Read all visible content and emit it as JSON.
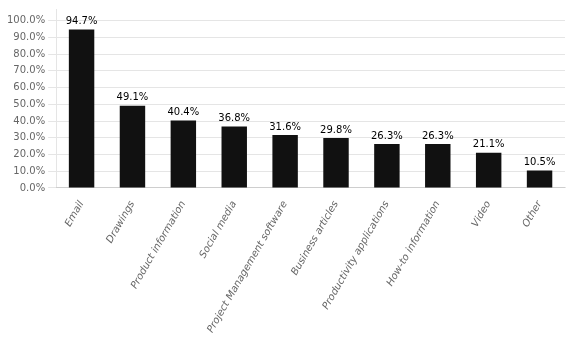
{
  "chart_data": {
    "type": "bar",
    "categories": [
      "Email",
      "Drawings",
      "Product information",
      "Social media",
      "Project Management software",
      "Business articles",
      "Productivity applications",
      "How-to information",
      "Video",
      "Other"
    ],
    "values": [
      94.7,
      49.1,
      40.4,
      36.8,
      31.6,
      29.8,
      26.3,
      26.3,
      21.1,
      10.5
    ],
    "value_labels": [
      "94.7%",
      "49.1%",
      "40.4%",
      "36.8%",
      "31.6%",
      "29.8%",
      "26.3%",
      "26.3%",
      "21.1%",
      "10.5%"
    ],
    "data_labels": true,
    "color": "#111111",
    "ylim": [
      0,
      107
    ],
    "yticks": [
      {
        "value": 0,
        "label": "0.0%"
      },
      {
        "value": 10,
        "label": "10.0%"
      },
      {
        "value": 20,
        "label": "20.0%"
      },
      {
        "value": 30,
        "label": "30.0%"
      },
      {
        "value": 40,
        "label": "40.0%"
      },
      {
        "value": 50,
        "label": "50.0%"
      },
      {
        "value": 60,
        "label": "60.0%"
      },
      {
        "value": 70,
        "label": "70.0%"
      },
      {
        "value": 80,
        "label": "80.0%"
      },
      {
        "value": 90,
        "label": "90.0%"
      },
      {
        "value": 100,
        "label": "100.0%"
      }
    ],
    "grid": true
  }
}
